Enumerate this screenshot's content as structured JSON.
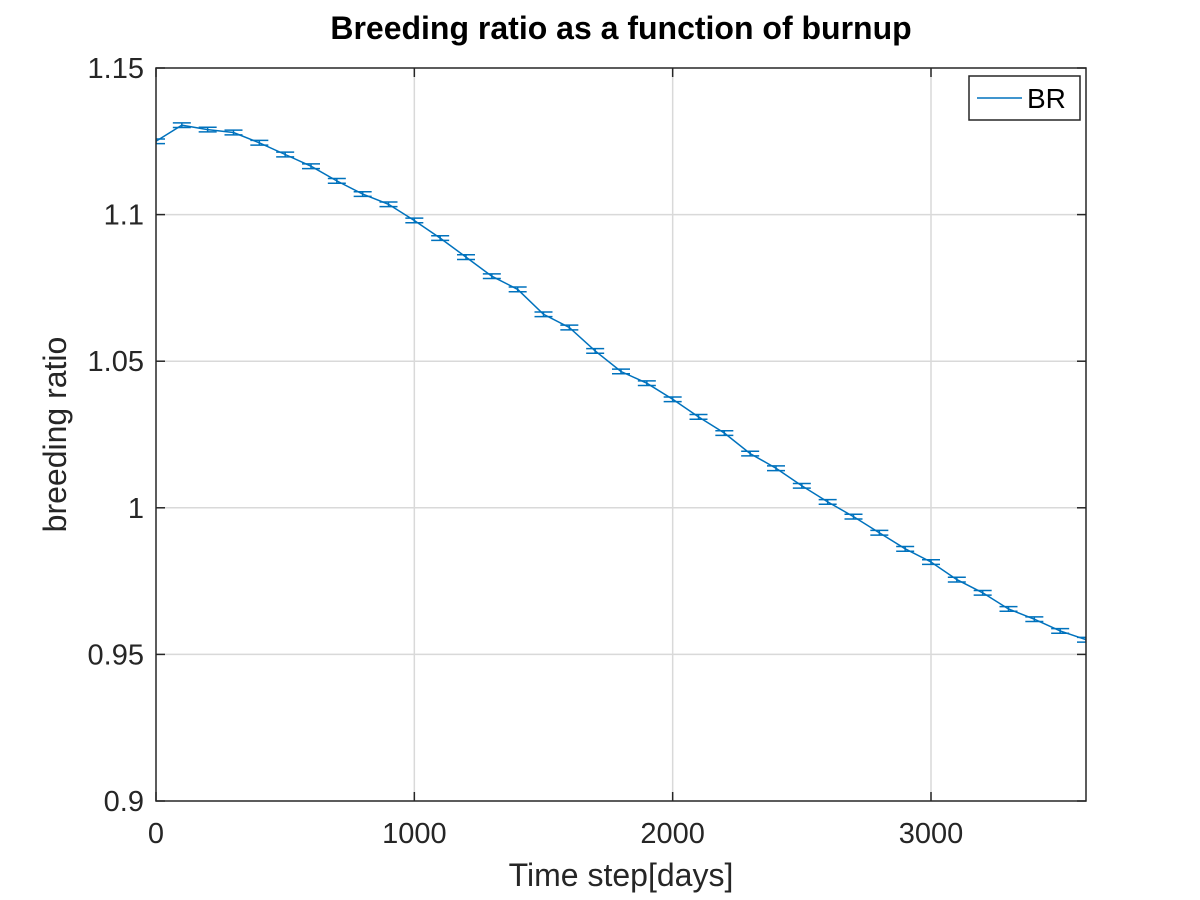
{
  "chart_data": {
    "type": "line",
    "title": "Breeding ratio as a function of burnup",
    "xlabel": "Time step[days]",
    "ylabel": "breeding ratio",
    "xlim": [
      0,
      3600
    ],
    "ylim": [
      0.9,
      1.15
    ],
    "xticks": [
      0,
      1000,
      2000,
      3000
    ],
    "xtick_labels": [
      "0",
      "1000",
      "2000",
      "3000"
    ],
    "yticks": [
      0.9,
      0.95,
      1.0,
      1.05,
      1.1,
      1.15
    ],
    "ytick_labels": [
      "0.9",
      "0.95",
      "1",
      "1.05",
      "1.1",
      "1.15"
    ],
    "grid": true,
    "legend_position": "top-right",
    "error_bars": true,
    "series": [
      {
        "name": "BR",
        "color": "#0072BD",
        "x": [
          0,
          100,
          200,
          300,
          400,
          500,
          600,
          700,
          800,
          900,
          1000,
          1100,
          1200,
          1300,
          1400,
          1500,
          1600,
          1700,
          1800,
          1900,
          2000,
          2100,
          2200,
          2300,
          2400,
          2500,
          2600,
          2700,
          2800,
          2900,
          3000,
          3100,
          3200,
          3300,
          3400,
          3500,
          3600
        ],
        "y": [
          1.125,
          1.1305,
          1.129,
          1.128,
          1.1245,
          1.1205,
          1.1165,
          1.1115,
          1.107,
          1.1035,
          1.098,
          1.092,
          1.0855,
          1.079,
          1.0745,
          1.066,
          1.0615,
          1.0535,
          1.0465,
          1.0425,
          1.037,
          1.031,
          1.0255,
          1.0185,
          1.0135,
          1.0075,
          1.002,
          0.997,
          0.9915,
          0.986,
          0.9815,
          0.9755,
          0.971,
          0.9655,
          0.962,
          0.958,
          0.955
        ],
        "error": 0.0008
      }
    ]
  }
}
